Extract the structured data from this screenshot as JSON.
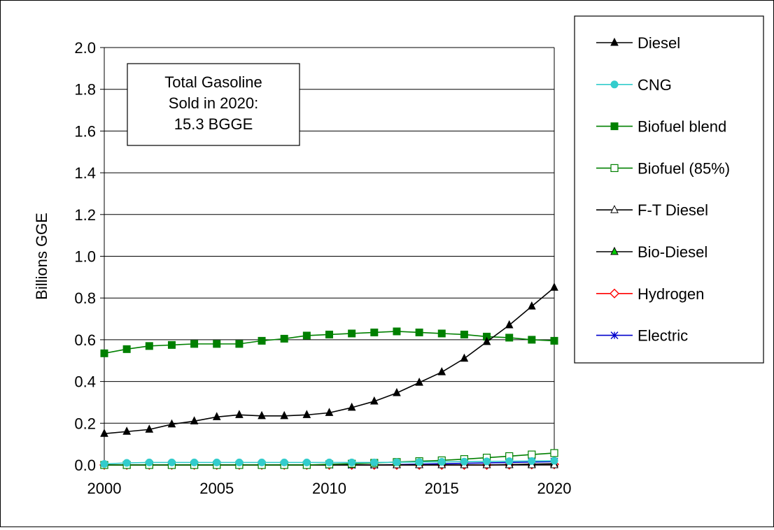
{
  "chart_data": {
    "type": "line",
    "ylabel": "Billions GGE",
    "xlabel": "",
    "ylim": [
      0,
      2.0
    ],
    "xlim": [
      2000,
      2020
    ],
    "x_ticks": [
      "2000",
      "2005",
      "2010",
      "2015",
      "2020"
    ],
    "y_ticks": [
      "0.0",
      "0.2",
      "0.4",
      "0.6",
      "0.8",
      "1.0",
      "1.2",
      "1.4",
      "1.6",
      "1.8",
      "2.0"
    ],
    "grid": "horizontal",
    "legend_position": "right",
    "annotation": [
      "Total Gasoline",
      "Sold in 2020:",
      "15.3 BGGE"
    ],
    "x": [
      2000,
      2001,
      2002,
      2003,
      2004,
      2005,
      2006,
      2007,
      2008,
      2009,
      2010,
      2011,
      2012,
      2013,
      2014,
      2015,
      2016,
      2017,
      2018,
      2019,
      2020
    ],
    "series": [
      {
        "name": "Diesel",
        "color": "#000000",
        "marker": "triangle-filled",
        "values": [
          0.15,
          0.16,
          0.17,
          0.195,
          0.21,
          0.23,
          0.24,
          0.235,
          0.235,
          0.24,
          0.25,
          0.275,
          0.305,
          0.345,
          0.395,
          0.445,
          0.51,
          0.59,
          0.67,
          0.76,
          0.85
        ]
      },
      {
        "name": "CNG",
        "color": "#33CCCC",
        "marker": "circle-filled",
        "values": [
          0.005,
          0.01,
          0.012,
          0.012,
          0.012,
          0.012,
          0.012,
          0.012,
          0.012,
          0.012,
          0.012,
          0.012,
          0.012,
          0.013,
          0.014,
          0.015,
          0.016,
          0.017,
          0.018,
          0.019,
          0.02
        ]
      },
      {
        "name": "Biofuel blend",
        "color": "#008000",
        "marker": "square-filled",
        "values": [
          0.535,
          0.555,
          0.57,
          0.575,
          0.58,
          0.58,
          0.58,
          0.595,
          0.605,
          0.62,
          0.625,
          0.63,
          0.635,
          0.64,
          0.635,
          0.63,
          0.625,
          0.615,
          0.61,
          0.6,
          0.595
        ]
      },
      {
        "name": "Biofuel (85%)",
        "color": "#008000",
        "marker": "square-open",
        "values": [
          0.0,
          0.0,
          0.0,
          0.0,
          0.0,
          0.0,
          0.0,
          0.0,
          0.0,
          0.0,
          0.003,
          0.006,
          0.01,
          0.014,
          0.018,
          0.022,
          0.028,
          0.035,
          0.042,
          0.05,
          0.057
        ]
      },
      {
        "name": "F-T Diesel",
        "color": "#000000",
        "marker": "triangle-open",
        "values": [
          0,
          0,
          0,
          0,
          0,
          0,
          0,
          0,
          0,
          0,
          0,
          0,
          0,
          0,
          0,
          0,
          0,
          0,
          0,
          0,
          0
        ]
      },
      {
        "name": "Bio-Diesel",
        "color": "#000000",
        "marker": "triangle-green",
        "values": [
          0,
          0,
          0,
          0,
          0,
          0,
          0,
          0,
          0,
          0,
          0,
          0,
          0,
          0,
          0,
          0,
          0,
          0,
          0.002,
          0.004,
          0.006
        ]
      },
      {
        "name": "Hydrogen",
        "color": "#FF0000",
        "marker": "diamond-open",
        "values": [
          0,
          0,
          0,
          0,
          0,
          0,
          0,
          0,
          0,
          0,
          0,
          0,
          0,
          0,
          0,
          0,
          0,
          0,
          0.001,
          0.002,
          0.003
        ]
      },
      {
        "name": "Electric",
        "color": "#0000CC",
        "marker": "star",
        "values": [
          0,
          0,
          0,
          0,
          0,
          0,
          0,
          0,
          0,
          0,
          0,
          0,
          0,
          0.002,
          0.004,
          0.006,
          0.008,
          0.01,
          0.012,
          0.014,
          0.016
        ]
      }
    ]
  }
}
